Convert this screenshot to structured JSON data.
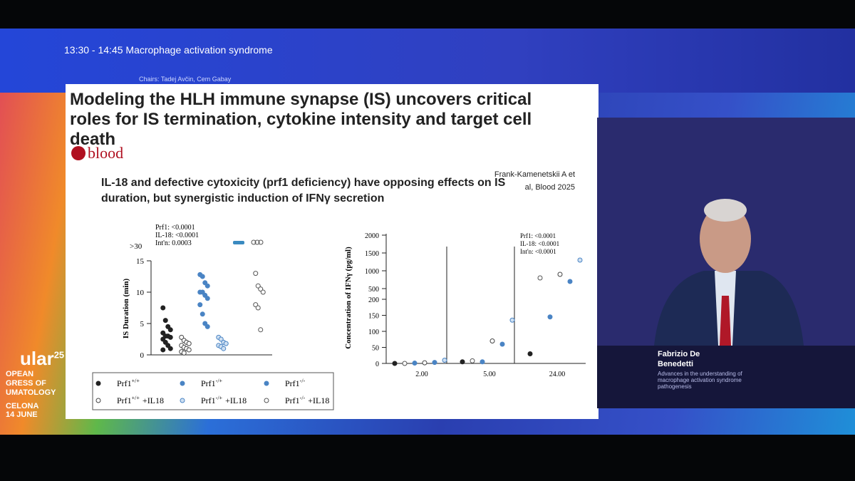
{
  "session": {
    "time": "13:30 - 14:45",
    "title": "Macrophage activation syndrome",
    "chairs": "Chairs: Tadej Avčin, Cem Gabay"
  },
  "slide": {
    "title": "Modeling the HLH immune synapse (IS) uncovers critical roles for IS termination, cytokine intensity and target cell death",
    "journal": "blood",
    "citation": "Frank-Kamenetskii A et al, Blood 2025",
    "subtitle": "IL-18 and defective cytoxicity (prf1 deficiency) have opposing effects on IS duration, but synergistic induction of IFNγ secretion",
    "left_plot": {
      "y_label": "IS Duration (min)",
      "stats": [
        "Prf1: <0.0001",
        "IL-18: <0.0001",
        "Int'n: 0.0003"
      ],
      "top_label": ">30",
      "yticks": [
        0,
        5,
        10,
        15
      ],
      "groups": [
        [
          7.5,
          5.5,
          4.5,
          4,
          3.5,
          3,
          3,
          2.8,
          2.5,
          2,
          1.5,
          1,
          0.8
        ],
        [
          2.8,
          2.3,
          2,
          1.8,
          1.5,
          1.2,
          1,
          0.8,
          0.5,
          0.3
        ],
        [
          12.8,
          12.5,
          11.5,
          11,
          10,
          10,
          9.5,
          9,
          8,
          6.5,
          5,
          4.5
        ],
        [
          2.8,
          2.5,
          2,
          1.8,
          1.5,
          1.3,
          1
        ],
        [],
        [
          13,
          11,
          10.5,
          10,
          8,
          7.5,
          4
        ]
      ]
    },
    "right_plot": {
      "y_label": "Concentration of IFNγ (pg/ml)",
      "stats": [
        "Prf1: <0.0001",
        "IL-18: <0.0001",
        "Int'n: <0.0001"
      ],
      "yticks_low": [
        0,
        50,
        100,
        150,
        200
      ],
      "yticks_high": [
        500,
        1000,
        1500,
        2000
      ],
      "xticks": [
        "2.00",
        "5.00",
        "24.00"
      ],
      "values": [
        [
          0,
          0,
          1,
          2,
          3,
          10
        ],
        [
          5,
          8,
          5,
          70,
          60,
          135
        ],
        [
          30,
          800,
          145,
          900,
          700,
          1300
        ]
      ]
    },
    "legend": [
      {
        "base": "Prf1",
        "sup": "+/+",
        "suffix": ""
      },
      {
        "base": "Prf1",
        "sup": "-/+",
        "suffix": ""
      },
      {
        "base": "Prf1",
        "sup": "-/-",
        "suffix": ""
      },
      {
        "base": "Prf1",
        "sup": "+/+",
        "suffix": "+IL18"
      },
      {
        "base": "Prf1",
        "sup": "-/+",
        "suffix": "+IL18"
      },
      {
        "base": "Prf1",
        "sup": "-/-",
        "suffix": "+IL18"
      }
    ]
  },
  "event": {
    "name": "ular",
    "superscript": "25",
    "lines": [
      "OPEAN",
      "GRESS OF",
      "UMATOLOGY"
    ],
    "city": "CELONA",
    "dates": "14 JUNE"
  },
  "speaker": {
    "name": "Fabrizio De Benedetti",
    "talk": "Advances in the understanding of macrophage activation syndrome pathogenesis"
  }
}
